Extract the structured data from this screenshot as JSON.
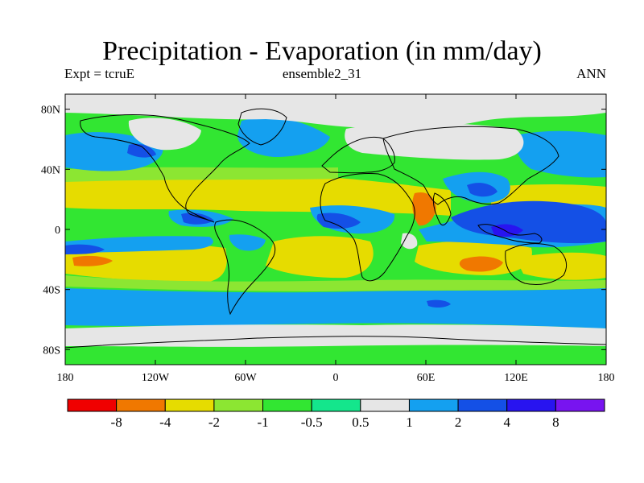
{
  "title": "Precipitation - Evaporation (in mm/day)",
  "subtitle_left": "Expt = tcruE",
  "subtitle_center": "ensemble2_31",
  "subtitle_right": "ANN",
  "axes": {
    "lon_ticks": [
      {
        "value": -180,
        "label": "180"
      },
      {
        "value": -120,
        "label": "120W"
      },
      {
        "value": -60,
        "label": "60W"
      },
      {
        "value": 0,
        "label": "0"
      },
      {
        "value": 60,
        "label": "60E"
      },
      {
        "value": 120,
        "label": "120E"
      },
      {
        "value": 180,
        "label": "180"
      }
    ],
    "lat_ticks": [
      {
        "value": 80,
        "label": "80N"
      },
      {
        "value": 40,
        "label": "40N"
      },
      {
        "value": 0,
        "label": "0"
      },
      {
        "value": -40,
        "label": "40S"
      },
      {
        "value": -80,
        "label": "80S"
      }
    ],
    "lon_range": [
      -180,
      180
    ],
    "lat_range": [
      -90,
      90
    ]
  },
  "colorbar": {
    "colors": [
      "#f00000",
      "#f07800",
      "#e6dc00",
      "#8ce632",
      "#32e632",
      "#14e68c",
      "#e6e6e6",
      "#14a0f0",
      "#1450e6",
      "#2814f0",
      "#7814f0"
    ],
    "labels": [
      "-8",
      "-4",
      "-2",
      "-1",
      "-0.5",
      "0.5",
      "1",
      "2",
      "4",
      "8"
    ]
  }
}
